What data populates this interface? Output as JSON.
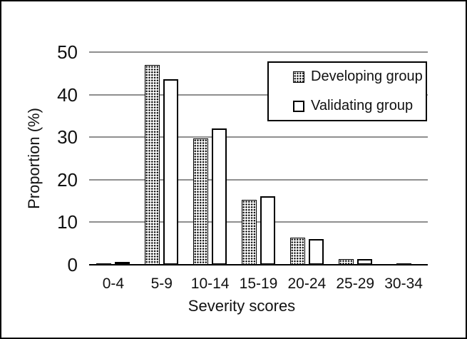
{
  "figure": {
    "background": "#ffffff",
    "border_color": "#000000"
  },
  "chart_data": {
    "type": "bar",
    "title": "",
    "xlabel": "Severity scores",
    "ylabel": "Proportion (%)",
    "categories": [
      "0-4",
      "5-9",
      "10-14",
      "15-19",
      "20-24",
      "25-29",
      "30-34"
    ],
    "series": [
      {
        "name": "Developing group",
        "fill": "dotted-pattern",
        "values": [
          0.4,
          47,
          29.7,
          15.3,
          6.4,
          1.3,
          0.4
        ]
      },
      {
        "name": "Validating group",
        "fill": "white",
        "values": [
          0.4,
          43.7,
          32,
          16.1,
          6,
          1.4,
          0
        ]
      }
    ],
    "ylim": [
      0,
      50
    ],
    "yticks": [
      0,
      10,
      20,
      30,
      40,
      50
    ],
    "grid": "horizontal",
    "gridline_color": "#8f8f8f",
    "legend_position": "top-right",
    "bar_outline_color": "#000000"
  }
}
